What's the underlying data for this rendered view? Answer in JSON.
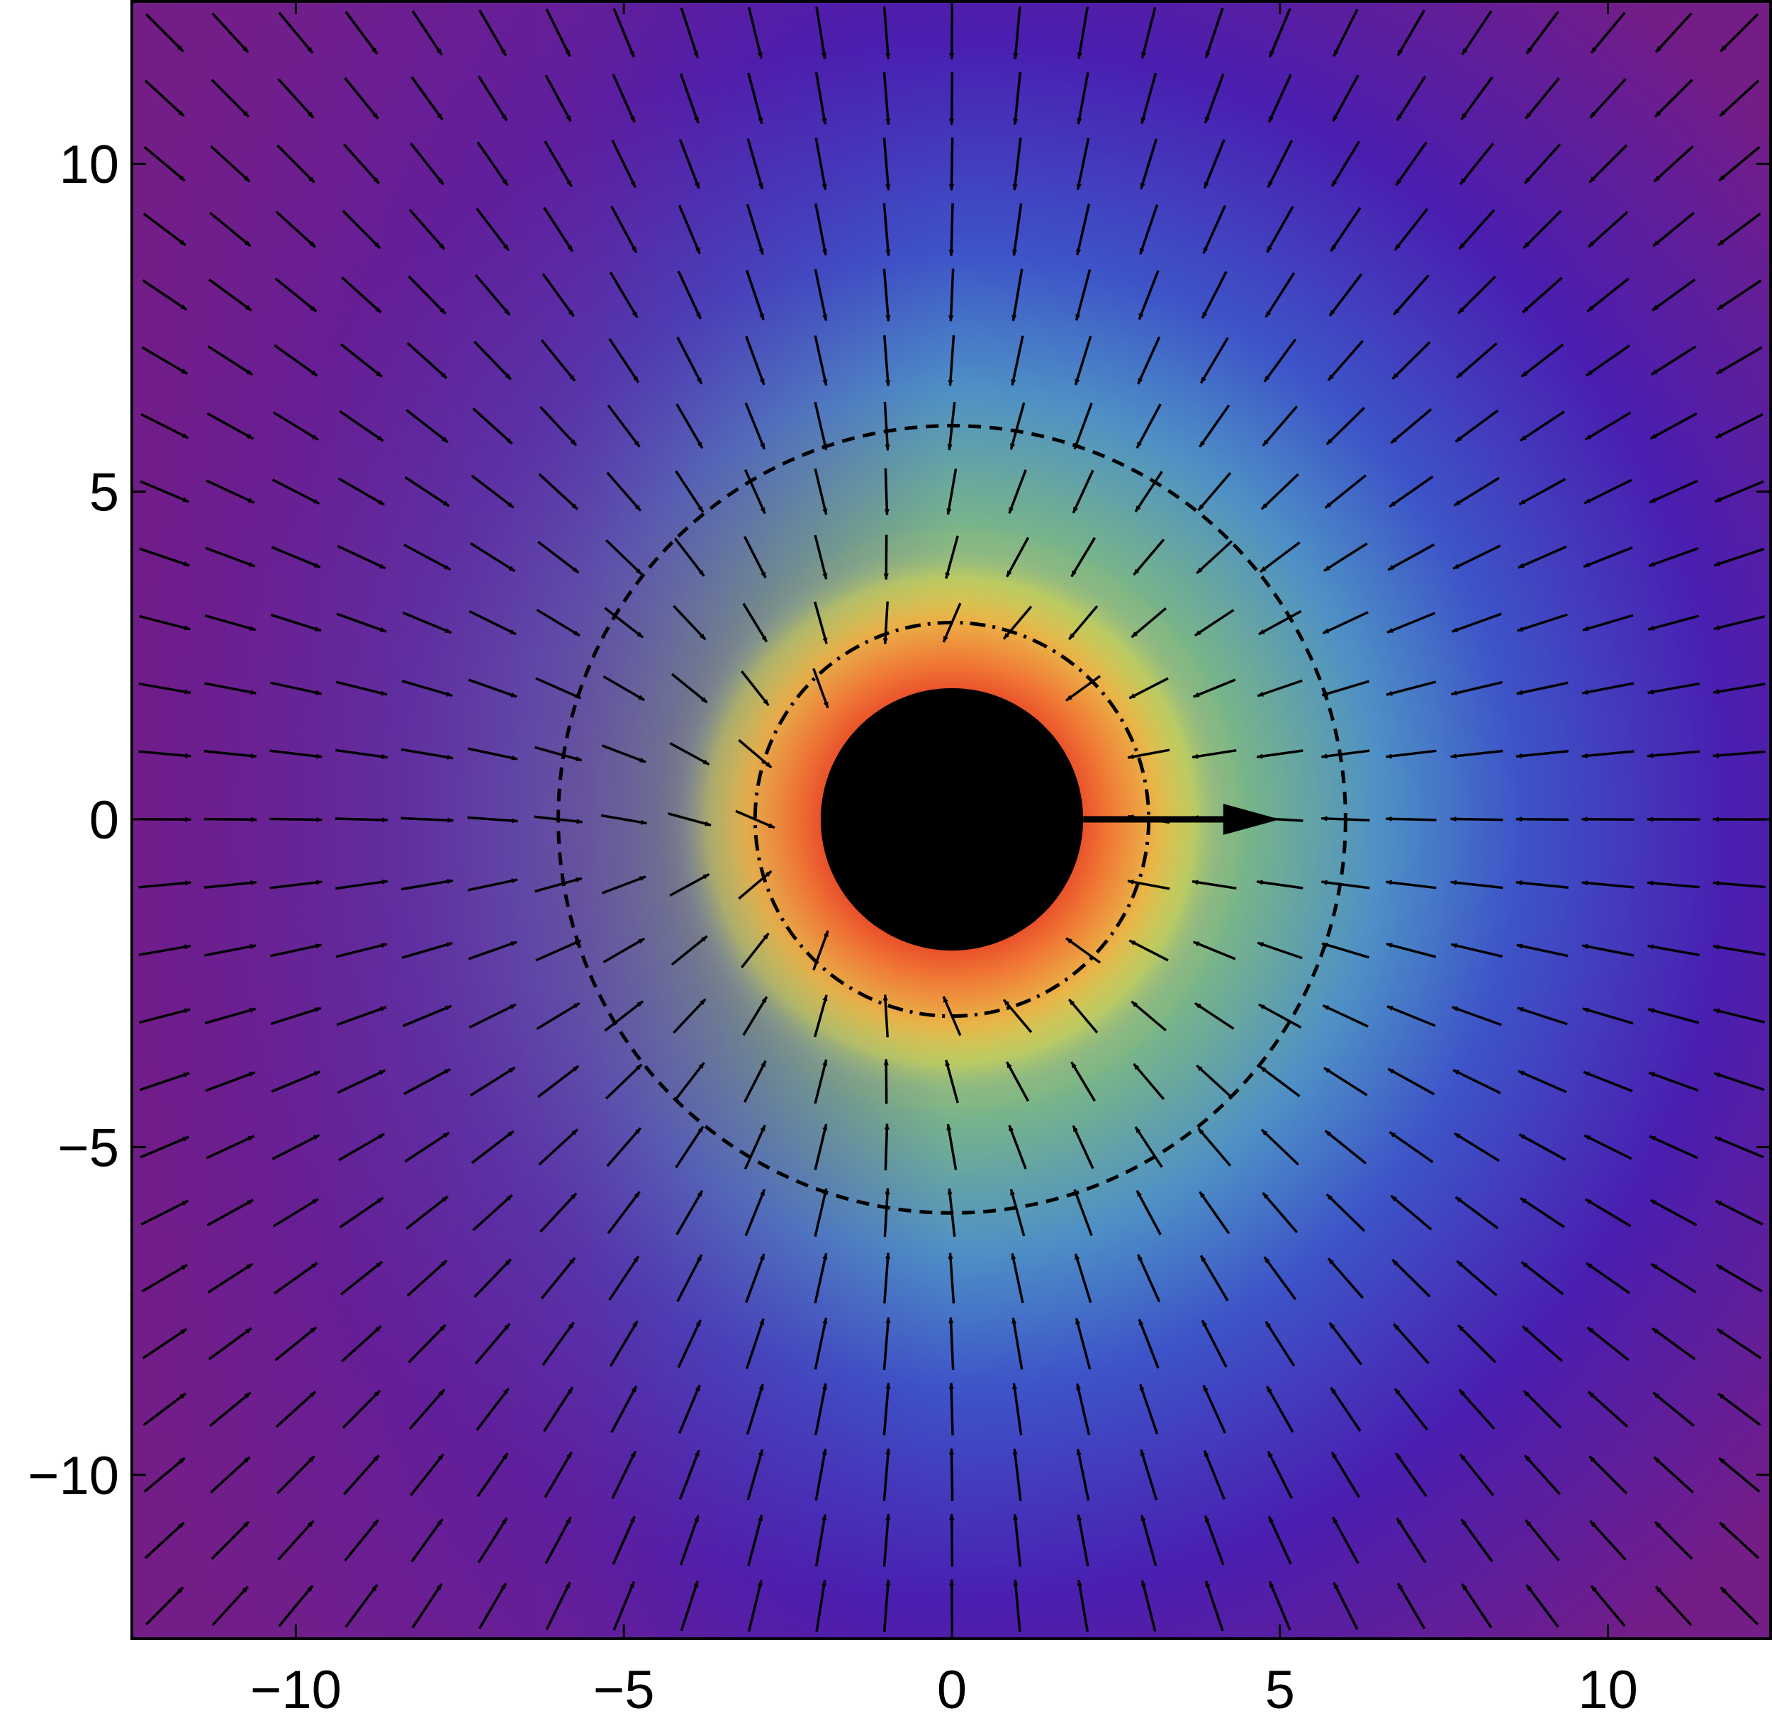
{
  "chart_data": {
    "type": "heatmap",
    "subtype": "vector-field-density-plot",
    "title": "",
    "xlabel": "",
    "ylabel": "",
    "xlim": [
      -12.5,
      12.5
    ],
    "ylim": [
      -12.5,
      12.5
    ],
    "x_ticks": [
      {
        "value": -10,
        "label": "−10"
      },
      {
        "value": -5,
        "label": "−5"
      },
      {
        "value": 0,
        "label": "0"
      },
      {
        "value": 5,
        "label": "5"
      },
      {
        "value": 10,
        "label": "10"
      }
    ],
    "y_ticks": [
      {
        "value": -10,
        "label": "−10"
      },
      {
        "value": -5,
        "label": "−5"
      },
      {
        "value": 0,
        "label": "0"
      },
      {
        "value": 5,
        "label": "5"
      },
      {
        "value": 10,
        "label": "10"
      }
    ],
    "grid": false,
    "legend": "none",
    "colormap": [
      "#741d86",
      "#4a1eb0",
      "#3d55c8",
      "#4e90c6",
      "#78b48a",
      "#c6cf5c",
      "#eeb045",
      "#f07233",
      "#e53a25"
    ],
    "black_disk": {
      "center": [
        0,
        0
      ],
      "radius": 2
    },
    "dotdash_circle": {
      "center": [
        0,
        0
      ],
      "radius": 3
    },
    "dashed_circle": {
      "center": [
        0,
        0
      ],
      "radius": 6
    },
    "highlight_arrow": {
      "from": [
        2,
        0
      ],
      "to": [
        5,
        0
      ]
    },
    "vector_field": {
      "grid_spacing": 1,
      "range": [
        -12,
        12
      ],
      "flow": "inward toward the disk, swirling near it"
    }
  }
}
